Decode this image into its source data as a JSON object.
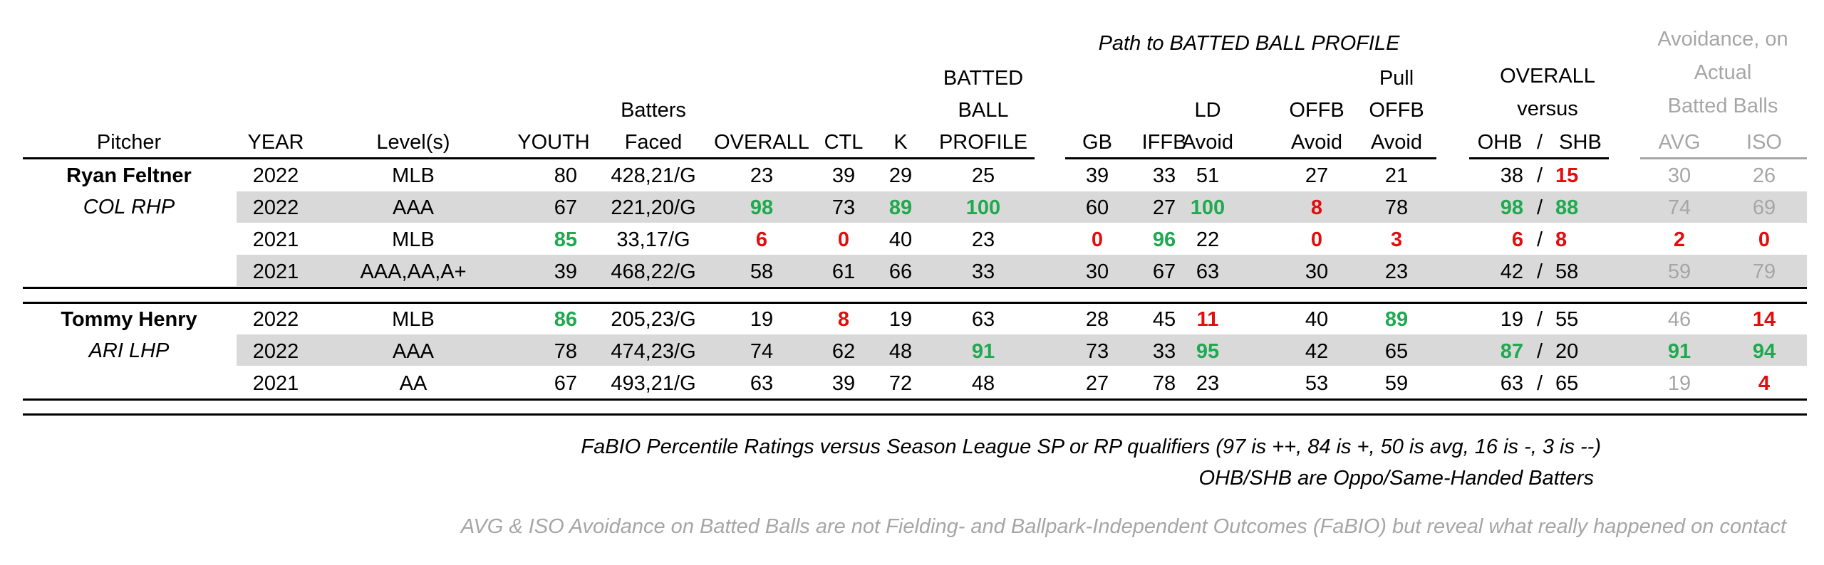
{
  "headers": {
    "section_title": "Path to BATTED BALL PROFILE",
    "pitcher": "Pitcher",
    "year": "YEAR",
    "level": "Level(s)",
    "youth": "YOUTH",
    "batters_l1": "Batters",
    "batters_l2": "Faced",
    "overall": "OVERALL",
    "ctl": "CTL",
    "k": "K",
    "bbp_l1": "BATTED",
    "bbp_l2": "BALL",
    "bbp_l3": "PROFILE",
    "gb": "GB",
    "iffb": "IFFB",
    "ld_l1": "LD",
    "ld_l2": "Avoid",
    "offb_l1": "OFFB",
    "offb_l2": "Avoid",
    "pull_l1": "Pull",
    "pull_l2": "OFFB",
    "pull_l3": "Avoid",
    "ovs_l1": "OVERALL",
    "ovs_l2": "versus",
    "ohb": "OHB",
    "slash": "/",
    "shb": "SHB",
    "avoid_l1": "Avoidance, on",
    "avoid_l2": "Actual",
    "avoid_l3": "Batted Balls",
    "avg": "AVG",
    "iso": "ISO"
  },
  "pitchers": [
    {
      "name": "Ryan Feltner",
      "team": "COL RHP"
    },
    {
      "name": "Tommy Henry",
      "team": "ARI LHP"
    }
  ],
  "rows": [
    {
      "year": "2022",
      "level": "MLB",
      "youth": "80",
      "bf": "428,21/G",
      "overall": "23",
      "ctl": "39",
      "k": "29",
      "bbp": "25",
      "gb": "39",
      "iffb": "33",
      "ld": "51",
      "offb": "27",
      "pull": "21",
      "ohb": "38",
      "shb": "15",
      "avg": "30",
      "iso": "26"
    },
    {
      "year": "2022",
      "level": "AAA",
      "youth": "67",
      "bf": "221,20/G",
      "overall": "98",
      "ctl": "73",
      "k": "89",
      "bbp": "100",
      "gb": "60",
      "iffb": "27",
      "ld": "100",
      "offb": "8",
      "pull": "78",
      "ohb": "98",
      "shb": "88",
      "avg": "74",
      "iso": "69"
    },
    {
      "year": "2021",
      "level": "MLB",
      "youth": "85",
      "bf": "33,17/G",
      "overall": "6",
      "ctl": "0",
      "k": "40",
      "bbp": "23",
      "gb": "0",
      "iffb": "96",
      "ld": "22",
      "offb": "0",
      "pull": "3",
      "ohb": "6",
      "shb": "8",
      "avg": "2",
      "iso": "0"
    },
    {
      "year": "2021",
      "level": "AAA,AA,A+",
      "youth": "39",
      "bf": "468,22/G",
      "overall": "58",
      "ctl": "61",
      "k": "66",
      "bbp": "33",
      "gb": "30",
      "iffb": "67",
      "ld": "63",
      "offb": "30",
      "pull": "23",
      "ohb": "42",
      "shb": "58",
      "avg": "59",
      "iso": "79"
    },
    {
      "year": "2022",
      "level": "MLB",
      "youth": "86",
      "bf": "205,23/G",
      "overall": "19",
      "ctl": "8",
      "k": "19",
      "bbp": "63",
      "gb": "28",
      "iffb": "45",
      "ld": "11",
      "offb": "40",
      "pull": "89",
      "ohb": "19",
      "shb": "55",
      "avg": "46",
      "iso": "14"
    },
    {
      "year": "2022",
      "level": "AAA",
      "youth": "78",
      "bf": "474,23/G",
      "overall": "74",
      "ctl": "62",
      "k": "48",
      "bbp": "91",
      "gb": "73",
      "iffb": "33",
      "ld": "95",
      "offb": "42",
      "pull": "65",
      "ohb": "87",
      "shb": "20",
      "avg": "91",
      "iso": "94"
    },
    {
      "year": "2021",
      "level": "AA",
      "youth": "67",
      "bf": "493,21/G",
      "overall": "63",
      "ctl": "39",
      "k": "72",
      "bbp": "48",
      "gb": "27",
      "iffb": "78",
      "ld": "23",
      "offb": "53",
      "pull": "59",
      "ohb": "63",
      "shb": "65",
      "avg": "19",
      "iso": "4"
    }
  ],
  "highlights": {
    "green": [
      "1.overall",
      "1.k",
      "1.bbp",
      "1.ld",
      "1.ohb",
      "1.shb",
      "2.youth",
      "2.iffb",
      "4.youth",
      "4.pull",
      "5.bbp",
      "5.ld",
      "5.ohb",
      "5.avg",
      "5.iso"
    ],
    "red": [
      "0.shb",
      "1.offb",
      "2.overall",
      "2.ctl",
      "2.gb",
      "2.offb",
      "2.pull",
      "2.ohb",
      "2.shb",
      "2.avg",
      "2.iso",
      "4.ctl",
      "4.ld",
      "4.iso",
      "6.iso"
    ]
  },
  "colors": {
    "green": "#1faa4f",
    "red": "#e30d0d",
    "gray_text": "#a6a6a6",
    "band": "#d9d9d9"
  },
  "footnotes": {
    "line1": "FaBIO Percentile Ratings versus Season League SP or RP qualifiers (97 is ++, 84 is +, 50 is avg, 16 is -, 3 is --)",
    "line2": "OHB/SHB are Oppo/Same-Handed Batters",
    "line3": "AVG & ISO Avoidance on Batted Balls are not Fielding- and Ballpark-Independent Outcomes (FaBIO) but reveal what really happened on contact"
  }
}
